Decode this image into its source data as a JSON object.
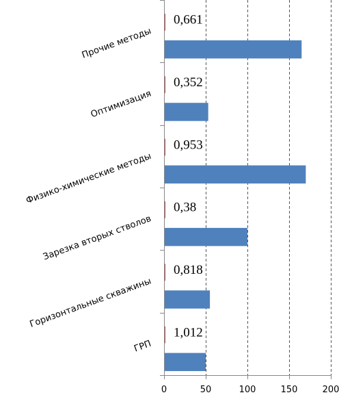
{
  "chart_data": {
    "type": "bar",
    "orientation": "horizontal",
    "categories": [
      "ГРП",
      "Горизонтальные скважины",
      "Зарезка вторых стволов",
      "Физико-химические методы",
      "Оптимизация",
      "Прочие методы"
    ],
    "series": [
      {
        "values": [
          50,
          55,
          100,
          170,
          53,
          165
        ],
        "color": "#4F81BD"
      },
      {
        "values": [
          1.012,
          0.818,
          0.38,
          0.953,
          0.352,
          0.661
        ],
        "color": "#C0504D"
      }
    ],
    "data_labels": [
      "1,012",
      "0,818",
      "0,38",
      "0,953",
      "0,352",
      "0,661"
    ],
    "xlim": [
      0,
      200
    ],
    "xticks": [
      0,
      50,
      100,
      150,
      200
    ],
    "xtick_labels": [
      "0",
      "50",
      "100",
      "150",
      "200"
    ],
    "grid": "vertical dashed",
    "legend": "none",
    "title": "",
    "xlabel": "",
    "ylabel": ""
  }
}
